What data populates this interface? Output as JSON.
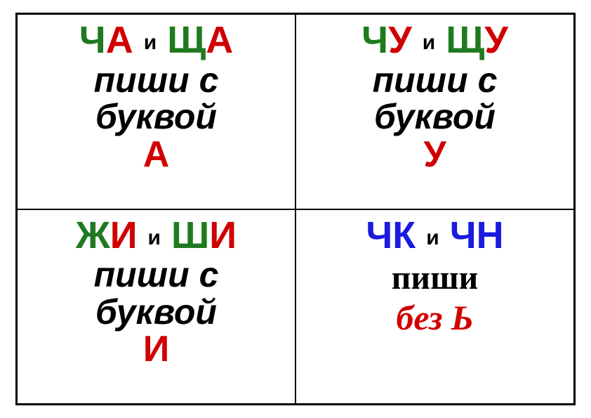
{
  "colors": {
    "green": "#1f7a1f",
    "red": "#d10000",
    "black": "#000000",
    "blue": "#1a1ae0"
  },
  "cells": [
    {
      "pair1_c1": "Ч",
      "pair1_c2": "А",
      "pair2_c1": "Щ",
      "pair2_c2": "А",
      "conj": "и",
      "rule1": "пиши с",
      "rule2": "буквой",
      "letter": "А",
      "c1_color": "#1f7a1f",
      "c2_color": "#d10000",
      "letter_color": "#d10000",
      "type": "standard"
    },
    {
      "pair1_c1": "Ч",
      "pair1_c2": "У",
      "pair2_c1": "Щ",
      "pair2_c2": "У",
      "conj": "и",
      "rule1": "пиши с",
      "rule2": "буквой",
      "letter": "У",
      "c1_color": "#1f7a1f",
      "c2_color": "#d10000",
      "letter_color": "#d10000",
      "type": "standard"
    },
    {
      "pair1_c1": "Ж",
      "pair1_c2": "И",
      "pair2_c1": "Ш",
      "pair2_c2": "И",
      "conj": "и",
      "rule1": "пиши с",
      "rule2": "буквой",
      "letter": "И",
      "c1_color": "#1f7a1f",
      "c2_color": "#d10000",
      "letter_color": "#d10000",
      "type": "standard"
    },
    {
      "pair1_c1": "Ч",
      "pair1_c2": "К",
      "pair2_c1": "Ч",
      "pair2_c2": "Н",
      "conj": "и",
      "rule_serif": "пиши",
      "final": "без Ь",
      "c1_color": "#1a1ae0",
      "c2_color": "#1a1ae0",
      "final_color": "#d10000",
      "type": "special"
    }
  ]
}
